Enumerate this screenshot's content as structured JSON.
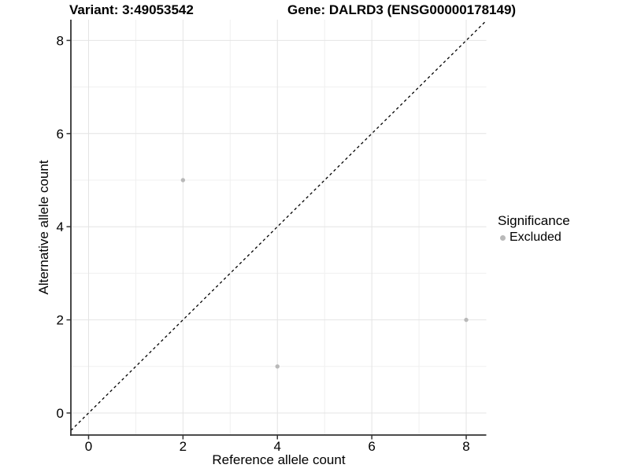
{
  "chart_data": {
    "type": "scatter",
    "title_left": "Variant: 3:49053542",
    "title_right": "Gene: DALRD3 (ENSG00000178149)",
    "xlabel": "Reference allele count",
    "ylabel": "Alternative allele count",
    "xlim": [
      -0.375,
      8.425
    ],
    "ylim": [
      -0.473,
      8.446
    ],
    "x_major_ticks": [
      0,
      2,
      4,
      6,
      8
    ],
    "y_major_ticks": [
      0,
      2,
      4,
      6,
      8
    ],
    "x_minor_gridlines": [
      1,
      3,
      5,
      7
    ],
    "y_minor_gridlines": [
      1,
      3,
      5,
      7
    ],
    "grid": "major+minor",
    "legend_position": "right",
    "series": [
      {
        "name": "Excluded",
        "color": "#b9b9b9",
        "points": [
          {
            "x": 2,
            "y": 5
          },
          {
            "x": 4,
            "y": 1
          },
          {
            "x": 8,
            "y": 2
          }
        ]
      }
    ],
    "reference_line": {
      "type": "identity",
      "equation": "y = x",
      "style": "dashed",
      "color": "#000000"
    }
  },
  "legend": {
    "title": "Significance",
    "items": [
      {
        "label": "Excluded",
        "color": "#b9b9b9",
        "marker": "dot"
      }
    ]
  },
  "colors": {
    "background": "#ffffff",
    "axis_line": "#333333",
    "major_grid": "#e4e4e4",
    "minor_grid": "#f0f0f0",
    "tick_label": "#000000",
    "point": "#b9b9b9"
  }
}
